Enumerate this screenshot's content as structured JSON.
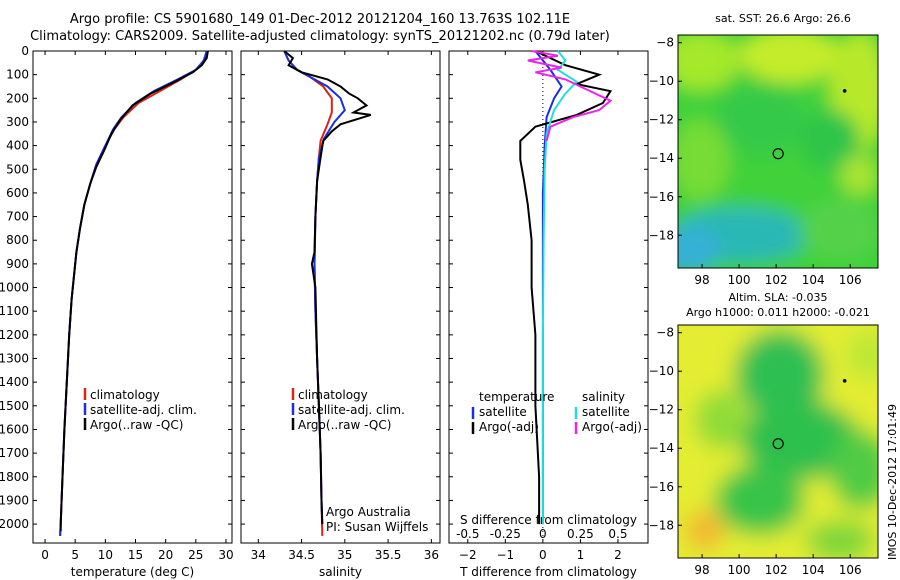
{
  "figure": {
    "title_line1": "Argo profile: CS 5901680_149 01-Dec-2012 20121204_160 13.763S 102.11E",
    "title_line2": "Climatology: CARS2009. Satellite-adjusted climatology: synTS_20121202.nc (0.79d later)",
    "stamp": "IMOS 10-Dec-2012 17:01:49"
  },
  "colors": {
    "climatology": "#dd2211",
    "satellite": "#1a2ee0",
    "argo": "#000000",
    "satellite_salinity": "#22dddd",
    "argo_salinity": "#ee22ee"
  },
  "chart_data": [
    {
      "type": "line",
      "name": "temperature-panel",
      "xlabel": "temperature (deg C)",
      "ylabel": "",
      "xlim": [
        -2,
        31
      ],
      "ylim": [
        2080,
        0
      ],
      "xticks": [
        0,
        5,
        10,
        15,
        20,
        25,
        30
      ],
      "yticks": [
        0,
        100,
        200,
        300,
        400,
        500,
        600,
        700,
        800,
        900,
        1000,
        1100,
        1200,
        1300,
        1400,
        1500,
        1600,
        1700,
        1800,
        1900,
        2000
      ],
      "legend": [
        "climatology",
        "satellite-adj. clim.",
        "Argo(..raw -QC)"
      ],
      "series": [
        {
          "name": "climatology",
          "color_key": "climatology",
          "points": [
            [
              27,
              0
            ],
            [
              26.5,
              40
            ],
            [
              25,
              80
            ],
            [
              22.5,
              120
            ],
            [
              19,
              170
            ],
            [
              15.5,
              220
            ],
            [
              13,
              280
            ],
            [
              11.5,
              330
            ],
            [
              10,
              400
            ],
            [
              8.5,
              480
            ],
            [
              7.5,
              560
            ],
            [
              6.5,
              650
            ],
            [
              5.8,
              750
            ],
            [
              5.2,
              850
            ],
            [
              4.8,
              950
            ],
            [
              4.4,
              1050
            ],
            [
              4.0,
              1200
            ],
            [
              3.6,
              1400
            ],
            [
              3.2,
              1600
            ],
            [
              2.9,
              1800
            ],
            [
              2.6,
              2000
            ],
            [
              2.5,
              2050
            ]
          ]
        },
        {
          "name": "satellite-adj. clim.",
          "color_key": "satellite",
          "points": [
            [
              26.8,
              0
            ],
            [
              26.3,
              40
            ],
            [
              25,
              80
            ],
            [
              22,
              120
            ],
            [
              18,
              170
            ],
            [
              15,
              220
            ],
            [
              12.7,
              280
            ],
            [
              11.3,
              330
            ],
            [
              10,
              400
            ],
            [
              8.5,
              480
            ],
            [
              7.5,
              560
            ],
            [
              6.5,
              650
            ],
            [
              5.8,
              750
            ],
            [
              5.2,
              850
            ],
            [
              4.8,
              950
            ],
            [
              4.4,
              1050
            ],
            [
              4.0,
              1200
            ],
            [
              3.6,
              1400
            ],
            [
              3.2,
              1600
            ],
            [
              2.9,
              1800
            ],
            [
              2.6,
              2000
            ],
            [
              2.5,
              2050
            ]
          ]
        },
        {
          "name": "Argo(..raw -QC)",
          "color_key": "argo",
          "points": [
            [
              27,
              0
            ],
            [
              26.8,
              30
            ],
            [
              26,
              60
            ],
            [
              24.5,
              90
            ],
            [
              21.5,
              130
            ],
            [
              17.5,
              180
            ],
            [
              14.5,
              230
            ],
            [
              12.5,
              290
            ],
            [
              11,
              350
            ],
            [
              9.8,
              420
            ],
            [
              8.5,
              490
            ],
            [
              7.5,
              560
            ],
            [
              6.5,
              650
            ],
            [
              5.8,
              750
            ],
            [
              5.2,
              850
            ],
            [
              4.8,
              950
            ],
            [
              4.4,
              1050
            ],
            [
              4.0,
              1200
            ],
            [
              3.6,
              1400
            ],
            [
              3.2,
              1600
            ],
            [
              2.9,
              1800
            ],
            [
              2.6,
              2000
            ],
            [
              2.6,
              2030
            ]
          ]
        }
      ]
    },
    {
      "type": "line",
      "name": "salinity-panel",
      "xlabel": "salinity",
      "ylabel": "",
      "xlim": [
        33.8,
        36.1
      ],
      "ylim": [
        2080,
        0
      ],
      "xticks": [
        34,
        34.5,
        35,
        35.5,
        36
      ],
      "legend": [
        "climatology",
        "satellite-adj. clim.",
        "Argo(..raw -QC)"
      ],
      "annotation": [
        "Argo Australia",
        "PI: Susan Wijffels"
      ],
      "series": [
        {
          "name": "climatology",
          "color_key": "climatology",
          "points": [
            [
              34.3,
              0
            ],
            [
              34.35,
              40
            ],
            [
              34.45,
              80
            ],
            [
              34.6,
              110
            ],
            [
              34.75,
              150
            ],
            [
              34.85,
              200
            ],
            [
              34.85,
              260
            ],
            [
              34.8,
              310
            ],
            [
              34.72,
              380
            ],
            [
              34.7,
              450
            ],
            [
              34.68,
              550
            ],
            [
              34.66,
              700
            ],
            [
              34.65,
              900
            ],
            [
              34.66,
              1100
            ],
            [
              34.68,
              1300
            ],
            [
              34.7,
              1500
            ],
            [
              34.72,
              1700
            ],
            [
              34.73,
              1900
            ],
            [
              34.74,
              2050
            ]
          ]
        },
        {
          "name": "satellite-adj. clim.",
          "color_key": "satellite",
          "points": [
            [
              34.3,
              0
            ],
            [
              34.35,
              40
            ],
            [
              34.45,
              80
            ],
            [
              34.6,
              110
            ],
            [
              34.8,
              150
            ],
            [
              34.95,
              200
            ],
            [
              35.0,
              250
            ],
            [
              34.88,
              300
            ],
            [
              34.76,
              370
            ],
            [
              34.7,
              450
            ],
            [
              34.68,
              550
            ],
            [
              34.66,
              700
            ],
            [
              34.65,
              900
            ],
            [
              34.66,
              1100
            ],
            [
              34.68,
              1300
            ],
            [
              34.7,
              1500
            ],
            [
              34.72,
              1700
            ],
            [
              34.73,
              1900
            ],
            [
              34.74,
              2000
            ]
          ]
        },
        {
          "name": "Argo(..raw -QC)",
          "color_key": "argo",
          "points": [
            [
              34.3,
              0
            ],
            [
              34.4,
              30
            ],
            [
              34.35,
              60
            ],
            [
              34.5,
              90
            ],
            [
              34.8,
              120
            ],
            [
              34.95,
              150
            ],
            [
              35.05,
              180
            ],
            [
              35.15,
              200
            ],
            [
              35.25,
              230
            ],
            [
              35.1,
              260
            ],
            [
              35.3,
              270
            ],
            [
              34.95,
              310
            ],
            [
              34.85,
              340
            ],
            [
              34.75,
              380
            ],
            [
              34.72,
              450
            ],
            [
              34.68,
              550
            ],
            [
              34.66,
              700
            ],
            [
              34.65,
              850
            ],
            [
              34.62,
              900
            ],
            [
              34.66,
              1000
            ],
            [
              34.68,
              1300
            ],
            [
              34.7,
              1500
            ],
            [
              34.72,
              1700
            ],
            [
              34.73,
              1900
            ],
            [
              34.74,
              2000
            ]
          ]
        }
      ]
    },
    {
      "type": "line",
      "name": "difference-panel",
      "xlabel": "T difference from climatology",
      "top_axis_label": "S difference from climatology",
      "xlim": [
        -2.5,
        2.8
      ],
      "ylim": [
        2080,
        0
      ],
      "xticks": [
        -2,
        -1,
        0,
        1,
        2
      ],
      "top_xticks": [
        "-0.5",
        "-0.25",
        "0",
        "0.25",
        "0.5"
      ],
      "top_xtick_positions": [
        -2,
        -1,
        0,
        1,
        2
      ],
      "legend": [
        "temperature",
        "satellite",
        "Argo(-adj)",
        "salinity",
        "satellite",
        "Argo(-adj)"
      ],
      "series": [
        {
          "name": "temperature satellite",
          "color_key": "satellite",
          "points": [
            [
              -0.2,
              0
            ],
            [
              0.2,
              80
            ],
            [
              0.5,
              150
            ],
            [
              0.3,
              200
            ],
            [
              0.1,
              280
            ],
            [
              0.05,
              400
            ],
            [
              0,
              600
            ],
            [
              0,
              1000
            ],
            [
              0,
              1500
            ],
            [
              0,
              2000
            ]
          ]
        },
        {
          "name": "temperature Argo(-adj)",
          "color_key": "argo",
          "points": [
            [
              -0.2,
              0
            ],
            [
              0.6,
              60
            ],
            [
              1.5,
              100
            ],
            [
              0.9,
              140
            ],
            [
              1.8,
              170
            ],
            [
              1.6,
              220
            ],
            [
              0.9,
              270
            ],
            [
              -0.2,
              320
            ],
            [
              -0.6,
              380
            ],
            [
              -0.6,
              460
            ],
            [
              -0.5,
              550
            ],
            [
              -0.4,
              650
            ],
            [
              -0.3,
              800
            ],
            [
              -0.3,
              1000
            ],
            [
              -0.2,
              1200
            ],
            [
              -0.2,
              1500
            ],
            [
              -0.1,
              1800
            ],
            [
              -0.1,
              2000
            ]
          ]
        },
        {
          "name": "salinity satellite",
          "color_key": "satellite_salinity",
          "points": [
            [
              0.4,
              0
            ],
            [
              0.6,
              40
            ],
            [
              0.4,
              80
            ],
            [
              0.9,
              130
            ],
            [
              0.6,
              180
            ],
            [
              0.3,
              250
            ],
            [
              0.1,
              350
            ],
            [
              0.05,
              500
            ],
            [
              0.02,
              800
            ],
            [
              0,
              1200
            ],
            [
              0,
              2000
            ]
          ]
        },
        {
          "name": "salinity Argo(-adj)",
          "color_key": "argo_salinity",
          "points": [
            [
              -0.3,
              0
            ],
            [
              0.4,
              20
            ],
            [
              -0.4,
              40
            ],
            [
              0.5,
              70
            ],
            [
              -0.2,
              90
            ],
            [
              0.6,
              120
            ],
            [
              1.0,
              150
            ],
            [
              1.8,
              210
            ],
            [
              1.5,
              250
            ],
            [
              0.8,
              280
            ],
            [
              0.2,
              320
            ],
            [
              0.1,
              380
            ]
          ]
        }
      ]
    },
    {
      "type": "heatmap",
      "name": "sst-map",
      "title": "sat. SST: 26.6  Argo: 26.6",
      "xlim": [
        96.7,
        107.5
      ],
      "ylim": [
        -19.7,
        -7.6
      ],
      "xticks": [
        98,
        100,
        102,
        104,
        106
      ],
      "yticks": [
        -8,
        -10,
        -12,
        -14,
        -16,
        -18
      ],
      "argo_position": [
        102.11,
        -13.763
      ],
      "marker_position": [
        105.7,
        -10.5
      ]
    },
    {
      "type": "heatmap",
      "name": "sla-map",
      "title_line1": "Altim. SLA: -0.035",
      "title_line2": "Argo h1000: 0.011 h2000: -0.021",
      "xlim": [
        96.7,
        107.5
      ],
      "ylim": [
        -19.7,
        -7.6
      ],
      "xticks": [
        98,
        100,
        102,
        104,
        106
      ],
      "yticks": [
        -8,
        -10,
        -12,
        -14,
        -16,
        -18
      ],
      "argo_position": [
        102.11,
        -13.763
      ],
      "marker_position": [
        105.7,
        -10.5
      ]
    }
  ]
}
